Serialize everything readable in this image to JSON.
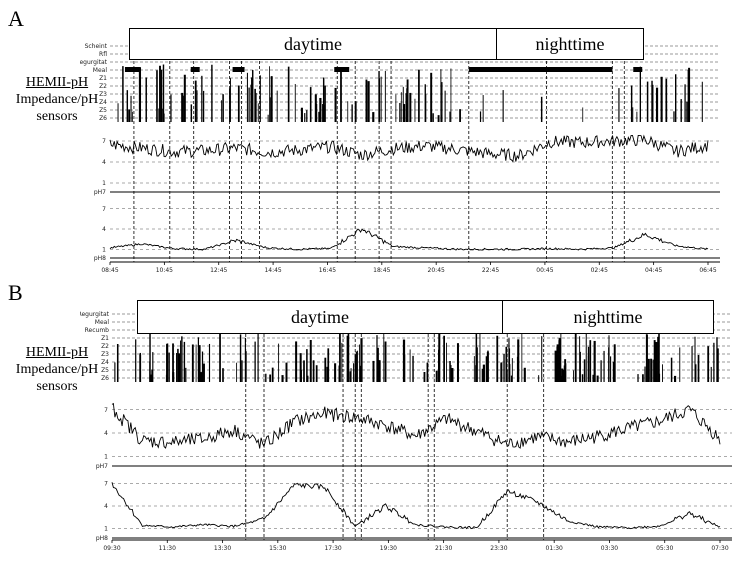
{
  "panels": [
    {
      "letter": "A",
      "sensor_label": "HEMII-pH",
      "sensor_sublabel_1": "Impedance/pH",
      "sensor_sublabel_2": "sensors",
      "periods": [
        "daytime",
        "nighttime"
      ],
      "row_labels": [
        "Scheint",
        "Rfl",
        "Regurgitat",
        "Meal",
        "Z1",
        "Z2",
        "Z3",
        "Z4",
        "Z5",
        "Z6"
      ],
      "y_ticks_top": [
        "7",
        "4",
        "1"
      ],
      "y_ticks_bottom": [
        "7",
        "4",
        "1"
      ],
      "channel_labels": [
        "pH7",
        "pH8"
      ],
      "x_ticks": [
        "08:45",
        "10:45",
        "12:45",
        "14:45",
        "16:45",
        "18:45",
        "20:45",
        "22:45",
        "00:45",
        "02:45",
        "04:45",
        "06:45"
      ]
    },
    {
      "letter": "B",
      "sensor_label": "HEMII-pH",
      "sensor_sublabel_1": "Impedance/pH",
      "sensor_sublabel_2": "sensors",
      "periods": [
        "daytime",
        "nighttime"
      ],
      "row_labels": [
        "Regurgitat",
        "Meal",
        "Recumb",
        "Z1",
        "Z2",
        "Z3",
        "Z4",
        "Z5",
        "Z6"
      ],
      "y_ticks_top": [
        "7",
        "4",
        "1"
      ],
      "y_ticks_bottom": [
        "7",
        "4",
        "1"
      ],
      "channel_labels": [
        "pH7",
        "pH8"
      ],
      "x_ticks": [
        "09:30",
        "11:30",
        "13:30",
        "15:30",
        "17:30",
        "19:30",
        "21:30",
        "23:30",
        "01:30",
        "03:30",
        "05:30",
        "07:30"
      ]
    }
  ],
  "chart_data": [
    {
      "type": "line",
      "title": "",
      "xlabel": "",
      "ylabel": "",
      "ylim": [
        0,
        8
      ],
      "series": [
        {
          "values": [
            6.5,
            6.0,
            5.5,
            5.6,
            6.0,
            5.4,
            5.7,
            6.2,
            5.0,
            5.9,
            6.3,
            5.8,
            5.2,
            4.9,
            6.9,
            6.8,
            7.0,
            7.2,
            5.5,
            6.4
          ]
        },
        {
          "values": [
            1.2,
            1.8,
            1.1,
            1.0,
            2.3,
            1.2,
            1.0,
            1.1,
            4.0,
            1.4,
            1.2,
            1.0,
            1.0,
            1.0,
            1.1,
            1.0,
            1.2,
            3.2,
            1.5,
            1.0
          ]
        }
      ]
    },
    {
      "type": "line",
      "title": "",
      "xlabel": "",
      "ylabel": "",
      "ylim": [
        0,
        8
      ],
      "series": [
        {
          "values": [
            7.2,
            3.0,
            2.8,
            3.2,
            4.4,
            2.4,
            5.5,
            6.5,
            6.0,
            5.0,
            3.6,
            5.8,
            4.2,
            2.5,
            3.5,
            2.8,
            3.6,
            4.6,
            5.5,
            7.0,
            3.2
          ]
        },
        {
          "values": [
            7.0,
            1.4,
            1.2,
            1.5,
            1.3,
            2.2,
            6.8,
            6.5,
            1.3,
            4.0,
            1.5,
            1.2,
            1.1,
            6.0,
            4.5,
            2.0,
            1.2,
            1.1,
            1.3,
            3.0,
            1.2
          ]
        }
      ]
    }
  ]
}
